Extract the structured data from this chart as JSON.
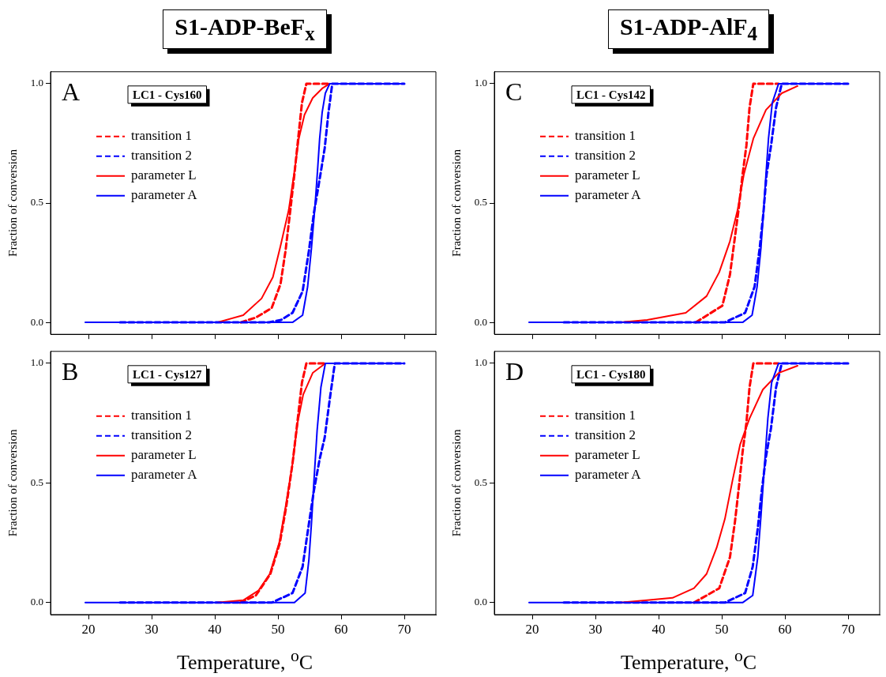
{
  "chart_data": [
    {
      "type": "line",
      "title": "S1-ADP-BeF$_{x}$",
      "ylabel": "Fraction of conversion",
      "annotations": [
        "A",
        "LC1 - Cys160"
      ],
      "xlim": [
        14,
        75
      ],
      "ylim": [
        -0.05,
        1.05
      ],
      "xticks": [
        20,
        30,
        40,
        50,
        60,
        70
      ],
      "yticks": [
        {
          "value": 0,
          "label": "0.0"
        },
        {
          "value": 0.5,
          "label": "0.5"
        },
        {
          "value": 1,
          "label": "1.0"
        }
      ],
      "tick_labels": "y",
      "legend": "top left",
      "marker": "none",
      "series": [
        {
          "name": "transition 1",
          "color": "#ff0000",
          "line_style": "dashed",
          "x": [
            44.1,
            46.5,
            49.0,
            50.4,
            51.2,
            52.0,
            52.6,
            53.2,
            53.8,
            54.5,
            58.2
          ],
          "values": [
            0,
            0.02,
            0.06,
            0.16,
            0.3,
            0.48,
            0.62,
            0.77,
            0.92,
            1,
            1
          ]
        },
        {
          "name": "transition 2",
          "color": "#0000ff",
          "line_style": "dashed",
          "x": [
            25,
            45,
            48.6,
            50.5,
            52.3,
            53.9,
            54.9,
            55.7,
            56.6,
            57.4,
            58.0,
            58.6,
            70
          ],
          "values": [
            0,
            0,
            0,
            0.01,
            0.04,
            0.13,
            0.3,
            0.46,
            0.6,
            0.73,
            0.88,
            1,
            1
          ]
        },
        {
          "name": "parameter L",
          "color": "#ff0000",
          "line_style": "solid",
          "x": [
            40.4,
            44.5,
            47.4,
            49.2,
            50.4,
            51.7,
            52.7,
            53.3,
            54.2,
            55.5,
            57,
            58.2
          ],
          "values": [
            0,
            0.03,
            0.1,
            0.19,
            0.32,
            0.47,
            0.65,
            0.77,
            0.87,
            0.94,
            0.98,
            1
          ]
        },
        {
          "name": "parameter A",
          "color": "#0000ff",
          "line_style": "solid",
          "x": [
            19.5,
            52.3,
            53.9,
            54.7,
            55.3,
            55.9,
            56.3,
            56.6,
            57.0,
            57.5,
            58.2,
            70
          ],
          "values": [
            0,
            0,
            0.03,
            0.15,
            0.31,
            0.5,
            0.65,
            0.77,
            0.88,
            0.96,
            1,
            1
          ]
        }
      ]
    },
    {
      "type": "line",
      "xlabel": "Temperature, $^{o}$C",
      "ylabel": "Fraction of conversion",
      "annotations": [
        "B",
        "LC1 - Cys127"
      ],
      "xlim": [
        14,
        75
      ],
      "ylim": [
        -0.05,
        1.05
      ],
      "xticks": [
        20,
        30,
        40,
        50,
        60,
        70
      ],
      "yticks": [
        {
          "value": 0,
          "label": "0.0"
        },
        {
          "value": 0.5,
          "label": "0.5"
        },
        {
          "value": 1,
          "label": "1.0"
        }
      ],
      "legend": "top left",
      "marker": "none",
      "series": [
        {
          "name": "transition 1",
          "color": "#ff0000",
          "line_style": "dashed",
          "x": [
            44,
            46.5,
            48.8,
            50.3,
            51.3,
            52.3,
            53.1,
            53.8,
            54.5,
            57.5
          ],
          "values": [
            0,
            0.03,
            0.12,
            0.25,
            0.4,
            0.58,
            0.76,
            0.92,
            1,
            1
          ]
        },
        {
          "name": "transition 2",
          "color": "#0000ff",
          "line_style": "dashed",
          "x": [
            25,
            49.0,
            52.3,
            53.9,
            54.9,
            55.7,
            56.6,
            57.4,
            58.2,
            59.0,
            70
          ],
          "values": [
            0,
            0,
            0.04,
            0.15,
            0.33,
            0.47,
            0.6,
            0.69,
            0.85,
            1,
            1
          ]
        },
        {
          "name": "parameter L",
          "color": "#ff0000",
          "line_style": "solid",
          "x": [
            40.4,
            44.5,
            46.9,
            48.7,
            50.2,
            51.2,
            52.3,
            53.1,
            54.0,
            55.5,
            57,
            57.5
          ],
          "values": [
            0,
            0.01,
            0.05,
            0.12,
            0.25,
            0.4,
            0.58,
            0.75,
            0.87,
            0.96,
            0.99,
            1
          ]
        },
        {
          "name": "parameter A",
          "color": "#0000ff",
          "line_style": "solid",
          "x": [
            19.5,
            52.6,
            54.3,
            54.9,
            55.3,
            55.7,
            56.2,
            56.8,
            57.5,
            70
          ],
          "values": [
            0,
            0,
            0.04,
            0.18,
            0.33,
            0.51,
            0.72,
            0.9,
            1,
            1
          ]
        }
      ]
    },
    {
      "type": "line",
      "title": "S1-ADP-AlF$_{4}$",
      "ylabel": "Fraction of conversion",
      "annotations": [
        "C",
        "LC1 - Cys142"
      ],
      "xlim": [
        14,
        75
      ],
      "ylim": [
        -0.05,
        1.05
      ],
      "xticks": [
        20,
        30,
        40,
        50,
        60,
        70
      ],
      "yticks": [
        {
          "value": 0,
          "label": "0.0"
        },
        {
          "value": 0.5,
          "label": "0.5"
        },
        {
          "value": 1,
          "label": "1.0"
        }
      ],
      "tick_labels": "y",
      "legend": "top left",
      "marker": "none",
      "series": [
        {
          "name": "transition 1",
          "color": "#ff0000",
          "line_style": "dashed",
          "x": [
            45.9,
            50.1,
            51.3,
            52.0,
            52.7,
            53.3,
            53.9,
            54.4,
            55,
            59.0
          ],
          "values": [
            0,
            0.07,
            0.2,
            0.34,
            0.48,
            0.62,
            0.74,
            0.9,
            1,
            1
          ]
        },
        {
          "name": "transition 2",
          "color": "#0000ff",
          "line_style": "dashed",
          "x": [
            25,
            50.5,
            53.7,
            55.2,
            56.0,
            56.6,
            57.1,
            57.8,
            58.6,
            59.5,
            70
          ],
          "values": [
            0,
            0,
            0.04,
            0.15,
            0.31,
            0.46,
            0.62,
            0.74,
            0.9,
            1,
            1
          ]
        },
        {
          "name": "parameter L",
          "color": "#ff0000",
          "line_style": "solid",
          "x": [
            34,
            38.2,
            44.3,
            47.6,
            49.6,
            51.3,
            52.5,
            53.5,
            55.0,
            57,
            59.5,
            62
          ],
          "values": [
            0,
            0.01,
            0.04,
            0.11,
            0.21,
            0.34,
            0.47,
            0.62,
            0.77,
            0.89,
            0.96,
            0.99
          ]
        },
        {
          "name": "parameter A",
          "color": "#0000ff",
          "line_style": "solid",
          "x": [
            19.5,
            53.3,
            54.8,
            55.6,
            56.2,
            56.6,
            57.0,
            57.4,
            58.0,
            59.0,
            70
          ],
          "values": [
            0,
            0,
            0.03,
            0.15,
            0.31,
            0.46,
            0.62,
            0.77,
            0.92,
            1,
            1
          ]
        }
      ]
    },
    {
      "type": "line",
      "xlabel": "Temperature, $^{o}$C",
      "ylabel": "Fraction of conversion",
      "annotations": [
        "D",
        "LC1 - Cys180"
      ],
      "xlim": [
        14,
        75
      ],
      "ylim": [
        -0.05,
        1.05
      ],
      "xticks": [
        20,
        30,
        40,
        50,
        60,
        70
      ],
      "yticks": [
        {
          "value": 0,
          "label": "0.0"
        },
        {
          "value": 0.5,
          "label": "0.5"
        },
        {
          "value": 1,
          "label": "1.0"
        }
      ],
      "legend": "top left",
      "marker": "none",
      "series": [
        {
          "name": "transition 1",
          "color": "#ff0000",
          "line_style": "dashed",
          "x": [
            45.6,
            49.6,
            51.3,
            52.1,
            52.7,
            53.3,
            53.9,
            54.4,
            55,
            59.0
          ],
          "values": [
            0,
            0.06,
            0.19,
            0.34,
            0.48,
            0.63,
            0.75,
            0.9,
            1,
            1
          ]
        },
        {
          "name": "transition 2",
          "color": "#0000ff",
          "line_style": "dashed",
          "x": [
            25,
            50.5,
            53.7,
            54.9,
            55.7,
            56.3,
            57.0,
            57.8,
            58.6,
            59.5,
            70
          ],
          "values": [
            0,
            0,
            0.04,
            0.15,
            0.31,
            0.46,
            0.61,
            0.73,
            0.9,
            1,
            1
          ]
        },
        {
          "name": "parameter L",
          "color": "#ff0000",
          "line_style": "solid",
          "x": [
            34,
            38.2,
            42.2,
            45.6,
            47.6,
            49.2,
            50.5,
            51.7,
            52.9,
            54.4,
            56.5,
            59,
            62
          ],
          "values": [
            0,
            0.01,
            0.02,
            0.06,
            0.12,
            0.23,
            0.35,
            0.51,
            0.66,
            0.77,
            0.89,
            0.96,
            0.99
          ]
        },
        {
          "name": "parameter A",
          "color": "#0000ff",
          "line_style": "solid",
          "x": [
            19.5,
            53.3,
            54.9,
            55.7,
            56.2,
            56.6,
            57.0,
            57.3,
            57.9,
            59.0,
            70
          ],
          "values": [
            0,
            0,
            0.03,
            0.19,
            0.36,
            0.51,
            0.66,
            0.77,
            0.92,
            1,
            1
          ]
        }
      ]
    }
  ]
}
